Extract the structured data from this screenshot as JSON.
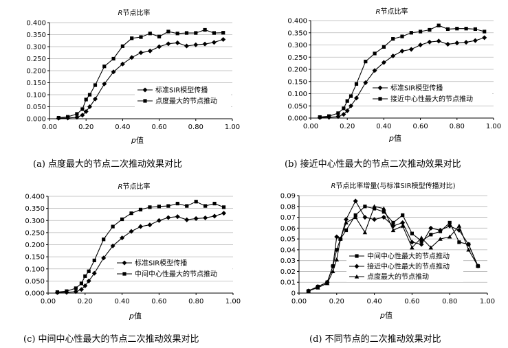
{
  "chart_data": [
    {
      "type": "line",
      "title_var": "R",
      "title": "节点比率",
      "xlabel_var": "p",
      "xlabel": "值",
      "caption": "(a) 点度最大的节点二次推动效果对比",
      "xlim": [
        0,
        1
      ],
      "ylim": [
        0,
        0.4
      ],
      "xticks": [
        "0.00",
        "0.20",
        "0.40",
        "0.60",
        "0.80",
        "1.00"
      ],
      "yticks": [
        "0.000",
        "0.050",
        "0.100",
        "0.150",
        "0.200",
        "0.250",
        "0.300",
        "0.350",
        "0.400"
      ],
      "legend": "bottom-right",
      "series": [
        {
          "name": "标准SIR模型传播",
          "marker": "diamond",
          "x": [
            0.05,
            0.1,
            0.15,
            0.18,
            0.2,
            0.22,
            0.25,
            0.3,
            0.35,
            0.4,
            0.45,
            0.5,
            0.55,
            0.6,
            0.65,
            0.7,
            0.75,
            0.8,
            0.85,
            0.9,
            0.95
          ],
          "y": [
            0.002,
            0.003,
            0.006,
            0.015,
            0.03,
            0.05,
            0.082,
            0.145,
            0.195,
            0.228,
            0.255,
            0.275,
            0.282,
            0.3,
            0.312,
            0.316,
            0.303,
            0.308,
            0.311,
            0.318,
            0.33
          ]
        },
        {
          "name": "点度最大的节点推动",
          "marker": "square",
          "x": [
            0.05,
            0.1,
            0.15,
            0.18,
            0.2,
            0.22,
            0.25,
            0.3,
            0.35,
            0.4,
            0.45,
            0.5,
            0.55,
            0.6,
            0.65,
            0.7,
            0.75,
            0.8,
            0.85,
            0.9,
            0.95
          ],
          "y": [
            0.004,
            0.008,
            0.02,
            0.04,
            0.08,
            0.1,
            0.14,
            0.218,
            0.25,
            0.302,
            0.335,
            0.34,
            0.355,
            0.342,
            0.363,
            0.355,
            0.357,
            0.357,
            0.37,
            0.357,
            0.358
          ]
        }
      ]
    },
    {
      "type": "line",
      "title_var": "R",
      "title": "节点比率",
      "xlabel_var": "p",
      "xlabel": "值",
      "caption": "(b) 接近中心性最大的节点二次推动效果对比",
      "xlim": [
        0,
        1
      ],
      "ylim": [
        0,
        0.4
      ],
      "xticks": [
        "0.00",
        "0.20",
        "0.40",
        "0.60",
        "0.80",
        "1.00"
      ],
      "yticks": [
        "0.000",
        "0.050",
        "0.100",
        "0.150",
        "0.200",
        "0.250",
        "0.300",
        "0.350",
        "0.400"
      ],
      "legend": "bottom-right",
      "series": [
        {
          "name": "标准SIR模型传播",
          "marker": "diamond",
          "x": [
            0.05,
            0.1,
            0.15,
            0.18,
            0.2,
            0.22,
            0.25,
            0.3,
            0.35,
            0.4,
            0.45,
            0.5,
            0.55,
            0.6,
            0.65,
            0.7,
            0.75,
            0.8,
            0.85,
            0.9,
            0.95
          ],
          "y": [
            0.002,
            0.003,
            0.006,
            0.015,
            0.03,
            0.05,
            0.082,
            0.145,
            0.195,
            0.228,
            0.255,
            0.275,
            0.282,
            0.3,
            0.312,
            0.316,
            0.303,
            0.308,
            0.311,
            0.318,
            0.33
          ]
        },
        {
          "name": "接近中心性最大的节点推动",
          "marker": "square",
          "x": [
            0.05,
            0.1,
            0.15,
            0.18,
            0.2,
            0.22,
            0.25,
            0.3,
            0.35,
            0.4,
            0.45,
            0.5,
            0.55,
            0.6,
            0.65,
            0.7,
            0.75,
            0.8,
            0.85,
            0.9,
            0.95
          ],
          "y": [
            0.004,
            0.008,
            0.02,
            0.04,
            0.07,
            0.09,
            0.14,
            0.232,
            0.265,
            0.292,
            0.325,
            0.335,
            0.35,
            0.355,
            0.362,
            0.38,
            0.365,
            0.367,
            0.367,
            0.365,
            0.355
          ]
        }
      ]
    },
    {
      "type": "line",
      "title_var": "R",
      "title": "节点比率",
      "xlabel_var": "p",
      "xlabel": "值",
      "caption": "(c) 中间中心性最大的节点二次推动效果对比",
      "xlim": [
        0,
        1
      ],
      "ylim": [
        0,
        0.4
      ],
      "xticks": [
        "0.00",
        "0.20",
        "0.40",
        "0.60",
        "0.80",
        "1.00"
      ],
      "yticks": [
        "0.000",
        "0.050",
        "0.100",
        "0.150",
        "0.200",
        "0.250",
        "0.300",
        "0.350",
        "0.400"
      ],
      "legend": "bottom-right",
      "series": [
        {
          "name": "标准SIR模型传播",
          "marker": "diamond",
          "x": [
            0.05,
            0.1,
            0.15,
            0.18,
            0.2,
            0.22,
            0.25,
            0.3,
            0.35,
            0.4,
            0.45,
            0.5,
            0.55,
            0.6,
            0.65,
            0.7,
            0.75,
            0.8,
            0.85,
            0.9,
            0.95
          ],
          "y": [
            0.002,
            0.003,
            0.006,
            0.015,
            0.03,
            0.05,
            0.082,
            0.145,
            0.195,
            0.228,
            0.255,
            0.275,
            0.282,
            0.3,
            0.312,
            0.316,
            0.303,
            0.308,
            0.311,
            0.318,
            0.33
          ]
        },
        {
          "name": "中间中心性最大的节点推动",
          "marker": "square",
          "x": [
            0.05,
            0.1,
            0.15,
            0.18,
            0.2,
            0.22,
            0.25,
            0.3,
            0.35,
            0.4,
            0.45,
            0.5,
            0.55,
            0.6,
            0.65,
            0.7,
            0.75,
            0.8,
            0.85,
            0.9,
            0.95
          ],
          "y": [
            0.004,
            0.008,
            0.02,
            0.04,
            0.07,
            0.09,
            0.135,
            0.222,
            0.275,
            0.305,
            0.33,
            0.345,
            0.355,
            0.358,
            0.36,
            0.37,
            0.36,
            0.378,
            0.36,
            0.37,
            0.355
          ]
        }
      ]
    },
    {
      "type": "line",
      "title_var": "R",
      "title": "节点比率增量(与标准SIR模型传播对比)",
      "xlabel_var": "p",
      "xlabel": "值",
      "caption": "(d) 不同节点的二次推动效果对比",
      "xlim": [
        0,
        1
      ],
      "ylim": [
        0,
        0.09
      ],
      "xticks": [
        "0.00",
        "0.20",
        "0.40",
        "0.60",
        "0.80",
        "1.00"
      ],
      "yticks": [
        "0",
        "0.01",
        "0.02",
        "0.03",
        "0.04",
        "0.05",
        "0.06",
        "0.07",
        "0.08",
        "0.09"
      ],
      "legend": "bottom-center",
      "series": [
        {
          "name": "中间中心性最大的节点推动",
          "marker": "square",
          "x": [
            0.05,
            0.1,
            0.15,
            0.18,
            0.2,
            0.22,
            0.25,
            0.3,
            0.35,
            0.4,
            0.45,
            0.5,
            0.55,
            0.6,
            0.65,
            0.7,
            0.75,
            0.8,
            0.85,
            0.9,
            0.95
          ],
          "y": [
            0.002,
            0.006,
            0.01,
            0.025,
            0.04,
            0.05,
            0.058,
            0.072,
            0.08,
            0.078,
            0.075,
            0.065,
            0.072,
            0.055,
            0.048,
            0.054,
            0.057,
            0.065,
            0.047,
            0.045,
            0.025
          ]
        },
        {
          "name": "接近中心性最大的节点推动",
          "marker": "diamond",
          "x": [
            0.05,
            0.1,
            0.15,
            0.18,
            0.2,
            0.22,
            0.25,
            0.3,
            0.35,
            0.4,
            0.45,
            0.5,
            0.55,
            0.6,
            0.65,
            0.7,
            0.75,
            0.8,
            0.85,
            0.9,
            0.95
          ],
          "y": [
            0.002,
            0.006,
            0.01,
            0.025,
            0.052,
            0.05,
            0.068,
            0.085,
            0.07,
            0.068,
            0.07,
            0.062,
            0.065,
            0.047,
            0.045,
            0.06,
            0.058,
            0.062,
            0.058,
            0.045,
            0.025
          ]
        },
        {
          "name": "点度最大的节点推动",
          "marker": "triangle",
          "x": [
            0.05,
            0.1,
            0.15,
            0.18,
            0.2,
            0.22,
            0.25,
            0.3,
            0.35,
            0.4,
            0.45,
            0.5,
            0.55,
            0.6,
            0.65,
            0.7,
            0.75,
            0.8,
            0.85,
            0.9,
            0.95
          ],
          "y": [
            0.002,
            0.005,
            0.009,
            0.02,
            0.031,
            0.05,
            0.065,
            0.07,
            0.056,
            0.08,
            0.078,
            0.058,
            0.062,
            0.042,
            0.051,
            0.042,
            0.05,
            0.052,
            0.062,
            0.04,
            0.025
          ]
        }
      ]
    }
  ]
}
